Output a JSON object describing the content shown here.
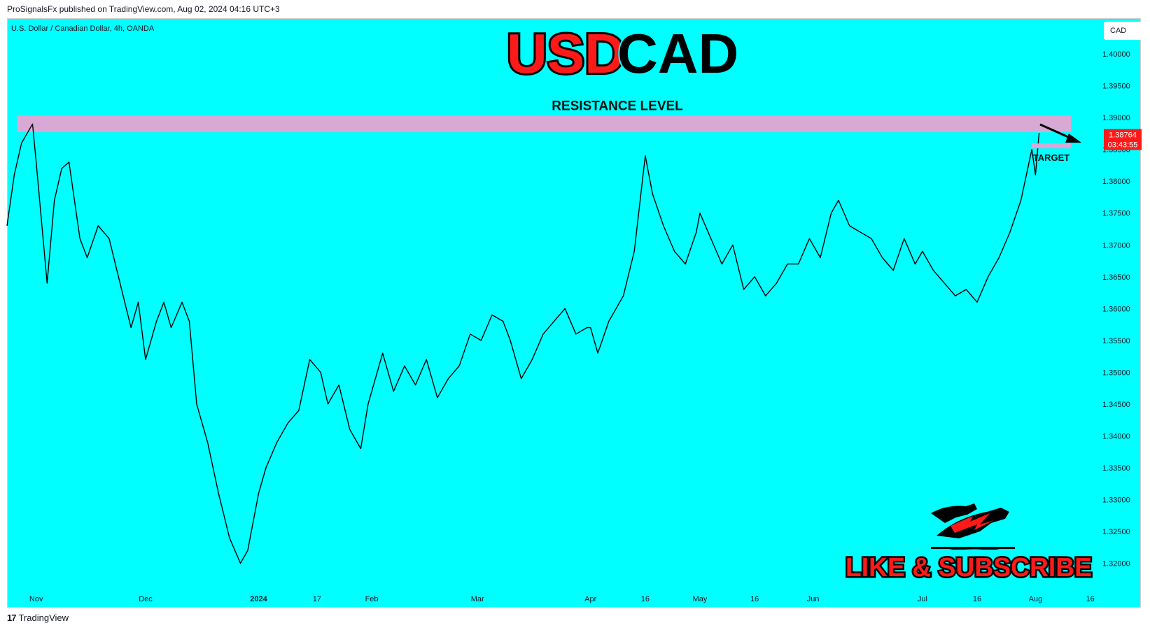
{
  "header": {
    "published_by": "ProSignalsFx published on TradingView.com, Aug 02, 2024 04:16 UTC+3"
  },
  "symbol_label": "U.S. Dollar / Canadian Dollar, 4h, OANDA",
  "currency_button": "CAD",
  "footer": {
    "brand_logo": "17",
    "brand": "TradingView"
  },
  "colors": {
    "background": "#00ffff",
    "resistance_zone": "#d7a9d4",
    "price_tag": "#ff1a1a",
    "title_red": "#ff1a1a"
  },
  "branding": {
    "title_part1": "USD",
    "title_part2": "CAD",
    "cta": "LIKE & SUBSCRIBE",
    "icon": "bull-bear-icon"
  },
  "annotations": {
    "resistance_label": "RESISTANCE LEVEL",
    "target_label": "TARGET",
    "resistance_range": [
      1.3877,
      1.3903
    ],
    "target_level": 1.3856
  },
  "price_tag": {
    "price": "1.38764",
    "countdown": "03:43:55",
    "value": 1.38764
  },
  "chart_data": {
    "type": "line",
    "title": "USDCAD",
    "ylim": [
      1.316,
      1.4055
    ],
    "y_ticks": [
      1.4,
      1.395,
      1.39,
      1.385,
      1.38,
      1.375,
      1.37,
      1.365,
      1.36,
      1.355,
      1.35,
      1.345,
      1.34,
      1.335,
      1.33,
      1.325,
      1.32
    ],
    "y_tick_labels": [
      "1.40000",
      "1.39500",
      "1.39000",
      "1.38500",
      "1.38000",
      "1.37500",
      "1.37000",
      "1.36500",
      "1.36000",
      "1.35500",
      "1.35000",
      "1.34500",
      "1.34000",
      "1.33500",
      "1.33000",
      "1.32500",
      "1.32000"
    ],
    "x_range": [
      "2023-10-24",
      "2024-08-18"
    ],
    "x_ticks": [
      {
        "label": "Nov",
        "date": "2023-11-01"
      },
      {
        "label": "Dec",
        "date": "2023-12-01"
      },
      {
        "label": "2024",
        "date": "2024-01-01",
        "bold": true
      },
      {
        "label": "17",
        "date": "2024-01-17"
      },
      {
        "label": "Feb",
        "date": "2024-02-01"
      },
      {
        "label": "Mar",
        "date": "2024-03-01"
      },
      {
        "label": "Apr",
        "date": "2024-04-01"
      },
      {
        "label": "16",
        "date": "2024-04-16"
      },
      {
        "label": "May",
        "date": "2024-05-01"
      },
      {
        "label": "16",
        "date": "2024-05-16"
      },
      {
        "label": "Jun",
        "date": "2024-06-01"
      },
      {
        "label": "Jul",
        "date": "2024-07-01"
      },
      {
        "label": "16",
        "date": "2024-07-16"
      },
      {
        "label": "Aug",
        "date": "2024-08-01"
      },
      {
        "label": "16",
        "date": "2024-08-16"
      }
    ],
    "series": [
      {
        "x": [
          "2023-10-24",
          "2023-10-26",
          "2023-10-28",
          "2023-10-31",
          "2023-11-01",
          "2023-11-04",
          "2023-11-06",
          "2023-11-08",
          "2023-11-10",
          "2023-11-13",
          "2023-11-15",
          "2023-11-18",
          "2023-11-21",
          "2023-11-24",
          "2023-11-27",
          "2023-11-29",
          "2023-12-01",
          "2023-12-04",
          "2023-12-06",
          "2023-12-08",
          "2023-12-11",
          "2023-12-13",
          "2023-12-15",
          "2023-12-18",
          "2023-12-21",
          "2023-12-24",
          "2023-12-27",
          "2023-12-29",
          "2024-01-01",
          "2024-01-03",
          "2024-01-06",
          "2024-01-09",
          "2024-01-12",
          "2024-01-15",
          "2024-01-18",
          "2024-01-20",
          "2024-01-23",
          "2024-01-26",
          "2024-01-29",
          "2024-01-31",
          "2024-02-02",
          "2024-02-04",
          "2024-02-07",
          "2024-02-10",
          "2024-02-13",
          "2024-02-16",
          "2024-02-19",
          "2024-02-22",
          "2024-02-25",
          "2024-02-28",
          "2024-03-02",
          "2024-03-05",
          "2024-03-08",
          "2024-03-10",
          "2024-03-13",
          "2024-03-16",
          "2024-03-19",
          "2024-03-22",
          "2024-03-25",
          "2024-03-28",
          "2024-03-31",
          "2024-04-01",
          "2024-04-03",
          "2024-04-06",
          "2024-04-08",
          "2024-04-10",
          "2024-04-13",
          "2024-04-16",
          "2024-04-18",
          "2024-04-21",
          "2024-04-24",
          "2024-04-27",
          "2024-04-30",
          "2024-05-01",
          "2024-05-04",
          "2024-05-07",
          "2024-05-10",
          "2024-05-13",
          "2024-05-16",
          "2024-05-19",
          "2024-05-22",
          "2024-05-25",
          "2024-05-28",
          "2024-05-31",
          "2024-06-03",
          "2024-06-06",
          "2024-06-08",
          "2024-06-11",
          "2024-06-14",
          "2024-06-17",
          "2024-06-20",
          "2024-06-23",
          "2024-06-26",
          "2024-06-29",
          "2024-07-01",
          "2024-07-04",
          "2024-07-07",
          "2024-07-10",
          "2024-07-13",
          "2024-07-16",
          "2024-07-19",
          "2024-07-22",
          "2024-07-25",
          "2024-07-28",
          "2024-07-31",
          "2024-08-01",
          "2024-08-02"
        ],
        "values": [
          1.373,
          1.381,
          1.386,
          1.389,
          1.383,
          1.364,
          1.377,
          1.382,
          1.383,
          1.371,
          1.368,
          1.373,
          1.371,
          1.364,
          1.357,
          1.361,
          1.352,
          1.358,
          1.361,
          1.357,
          1.361,
          1.358,
          1.345,
          1.339,
          1.331,
          1.324,
          1.32,
          1.322,
          1.331,
          1.335,
          1.339,
          1.342,
          1.344,
          1.352,
          1.35,
          1.345,
          1.348,
          1.341,
          1.338,
          1.345,
          1.349,
          1.353,
          1.347,
          1.351,
          1.348,
          1.352,
          1.346,
          1.349,
          1.351,
          1.356,
          1.355,
          1.359,
          1.358,
          1.355,
          1.349,
          1.352,
          1.356,
          1.358,
          1.36,
          1.356,
          1.357,
          1.357,
          1.353,
          1.358,
          1.36,
          1.362,
          1.369,
          1.384,
          1.378,
          1.373,
          1.369,
          1.367,
          1.372,
          1.375,
          1.371,
          1.367,
          1.37,
          1.363,
          1.365,
          1.362,
          1.364,
          1.367,
          1.367,
          1.371,
          1.368,
          1.375,
          1.377,
          1.373,
          1.372,
          1.371,
          1.368,
          1.366,
          1.371,
          1.367,
          1.369,
          1.366,
          1.364,
          1.362,
          1.363,
          1.361,
          1.365,
          1.368,
          1.372,
          1.377,
          1.385,
          1.381,
          1.3876
        ]
      }
    ],
    "grid": false
  }
}
